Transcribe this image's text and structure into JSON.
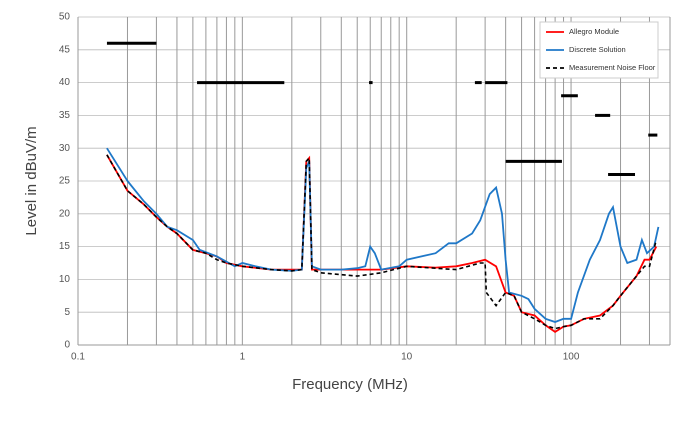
{
  "chart_data": {
    "type": "line",
    "x_label": "Frequency (MHz)",
    "y_label": "Level in dBuV/m",
    "x_log": true,
    "grid": true,
    "legend": "top-right",
    "xlim": [
      0.1,
      400
    ],
    "xticks": [
      0.1,
      1,
      10,
      100
    ],
    "ylim": [
      0,
      50
    ],
    "yticks": [
      0,
      5,
      10,
      15,
      20,
      25,
      30,
      35,
      40,
      45,
      50
    ],
    "series": [
      {
        "name": "Allegro Module",
        "color": "#ff0000",
        "dash": false,
        "x": [
          0.15,
          0.2,
          0.25,
          0.3,
          0.35,
          0.4,
          0.5,
          0.6,
          0.7,
          0.8,
          1,
          1.5,
          2,
          2.3,
          2.45,
          2.55,
          2.65,
          3,
          5,
          7,
          10,
          15,
          20,
          25,
          30,
          35,
          40,
          45,
          50,
          60,
          70,
          80,
          90,
          100,
          120,
          150,
          180,
          200,
          250,
          280,
          300,
          330
        ],
        "values": [
          29,
          23.5,
          21.5,
          19.5,
          18,
          17,
          14.5,
          14,
          13.5,
          12.5,
          12,
          11.5,
          11.5,
          11.5,
          28,
          28.5,
          11.5,
          11.5,
          11.5,
          11.5,
          12,
          11.8,
          12,
          12.5,
          13,
          12,
          8,
          7.5,
          5,
          4.5,
          3,
          2,
          2.8,
          3,
          4,
          4.5,
          6,
          7.5,
          10.5,
          13,
          13,
          15
        ]
      },
      {
        "name": "Discrete Solution",
        "color": "#1f78c8",
        "dash": false,
        "x": [
          0.15,
          0.2,
          0.25,
          0.3,
          0.35,
          0.4,
          0.5,
          0.55,
          0.7,
          0.9,
          1,
          1.2,
          1.5,
          2,
          2.3,
          2.45,
          2.55,
          2.65,
          3,
          4,
          5,
          5.6,
          6,
          6.4,
          7,
          9,
          10,
          15,
          18,
          20,
          25,
          28,
          32,
          35,
          38,
          40,
          42,
          50,
          55,
          60,
          70,
          80,
          90,
          100,
          110,
          130,
          150,
          170,
          180,
          200,
          220,
          250,
          270,
          290,
          320,
          340
        ],
        "values": [
          30,
          25,
          22,
          20,
          18,
          17.5,
          16,
          14.5,
          13.5,
          12,
          12.5,
          12,
          11.5,
          11.3,
          11.5,
          27,
          28,
          12,
          11.5,
          11.5,
          11.7,
          12,
          15,
          14,
          11.5,
          12,
          13,
          14,
          15.5,
          15.5,
          17,
          19,
          23,
          24,
          20,
          13,
          8,
          7.5,
          7,
          5.5,
          4,
          3.5,
          4,
          4,
          8,
          13,
          16,
          20,
          21,
          15,
          12.5,
          13,
          16,
          14,
          15,
          18
        ]
      },
      {
        "name": "Measurement Noise Floor",
        "color": "#000000",
        "dash": true,
        "x": [
          0.15,
          0.2,
          0.25,
          0.3,
          0.35,
          0.4,
          0.5,
          0.6,
          0.7,
          0.8,
          1,
          1.5,
          2,
          2.3,
          2.45,
          2.55,
          2.65,
          3,
          5,
          7,
          10,
          20,
          28,
          30,
          30.5,
          35,
          40,
          45,
          50,
          60,
          70,
          80,
          90,
          100,
          120,
          150,
          180,
          200,
          250,
          280,
          300,
          330
        ],
        "values": [
          29,
          23.5,
          21.5,
          19.5,
          18,
          17,
          14.5,
          14,
          13,
          12.5,
          12,
          11.5,
          11.3,
          11.5,
          28,
          28.5,
          11.5,
          11,
          10.5,
          11,
          12,
          11.5,
          12.5,
          12.5,
          8,
          6,
          8,
          7.5,
          5,
          4,
          3,
          2.5,
          2.8,
          3,
          4,
          4,
          6,
          7.5,
          10.5,
          12,
          12,
          16
        ]
      }
    ],
    "limit_segments": [
      {
        "x": [
          0.15,
          0.3
        ],
        "y": 46
      },
      {
        "x": [
          0.53,
          1.8
        ],
        "y": 40
      },
      {
        "x": [
          5.9,
          6.2
        ],
        "y": 40
      },
      {
        "x": [
          26,
          28.6
        ],
        "y": 40
      },
      {
        "x": [
          30,
          41
        ],
        "y": 40
      },
      {
        "x": [
          40,
          88
        ],
        "y": 28
      },
      {
        "x": [
          87,
          110
        ],
        "y": 38
      },
      {
        "x": [
          140,
          173
        ],
        "y": 35
      },
      {
        "x": [
          168,
          245
        ],
        "y": 26
      },
      {
        "x": [
          295,
          335
        ],
        "y": 32
      }
    ]
  }
}
